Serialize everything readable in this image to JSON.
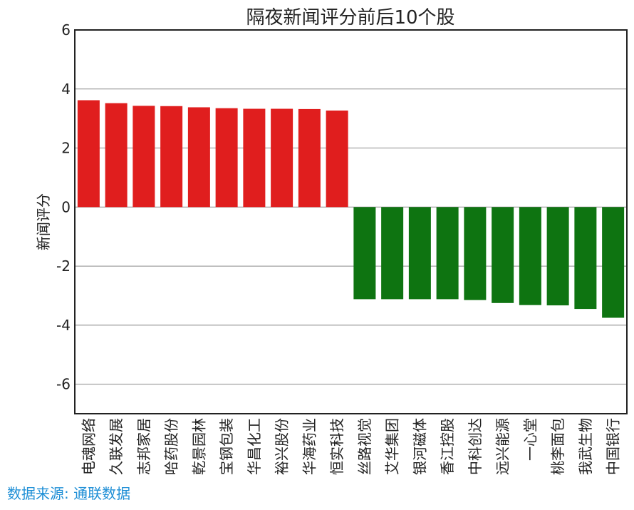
{
  "chart_data": {
    "type": "bar",
    "title": "隔夜新闻评分前后10个股",
    "xlabel": "",
    "ylabel": "新闻评分",
    "ylim": [
      -7,
      6
    ],
    "yticks": [
      -6,
      -4,
      -2,
      0,
      2,
      4,
      6
    ],
    "grid": true,
    "categories": [
      "电魂网络",
      "久联发展",
      "志邦家居",
      "哈药股份",
      "乾景园林",
      "宝钢包装",
      "华昌化工",
      "裕兴股份",
      "华海药业",
      "恒实科技",
      "丝路视觉",
      "艾华集团",
      "银河磁体",
      "香江控股",
      "中科创达",
      "远兴能源",
      "一心堂",
      "桃李面包",
      "我武生物",
      "中国银行"
    ],
    "values": [
      3.62,
      3.52,
      3.43,
      3.42,
      3.38,
      3.35,
      3.33,
      3.33,
      3.32,
      3.27,
      -3.12,
      -3.12,
      -3.12,
      -3.12,
      -3.15,
      -3.25,
      -3.32,
      -3.33,
      -3.45,
      -3.75
    ],
    "colors": {
      "positive": "#e01e1e",
      "negative": "#0e7411"
    }
  },
  "source": "数据来源: 通联数据"
}
